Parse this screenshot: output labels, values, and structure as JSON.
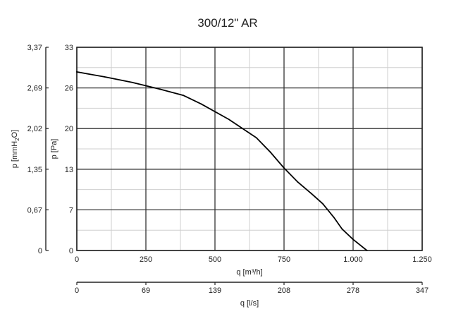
{
  "chart_data": {
    "type": "line",
    "title": "300/12\" AR",
    "xlabel": "q [m³/h]",
    "x_secondary_label": "q [l/s]",
    "ylabel": "p [Pa]",
    "y_secondary_label_parts": [
      "p [mmH",
      "2",
      "O]"
    ],
    "xlim": [
      0,
      1250
    ],
    "ylim": [
      0,
      33
    ],
    "x_ticks": [
      0,
      250,
      500,
      750,
      1000,
      1250
    ],
    "x_tick_labels": [
      "0",
      "250",
      "500",
      "750",
      "1.000",
      "1.250"
    ],
    "x_secondary_tick_labels": [
      "0",
      "69",
      "139",
      "208",
      "278",
      "347"
    ],
    "y_ticks": [
      0,
      6.6,
      13.2,
      19.8,
      26.4,
      33
    ],
    "y_tick_labels": [
      "0",
      "7",
      "13",
      "20",
      "26",
      "33"
    ],
    "y_secondary_tick_labels": [
      "0",
      "0,67",
      "1,35",
      "2,02",
      "2,69",
      "3,37"
    ],
    "grid": true,
    "series": [
      {
        "color": "#000000",
        "x": [
          0,
          100,
          200,
          300,
          385,
          450,
          550,
          650,
          700,
          750,
          800,
          850,
          890,
          930,
          960,
          1000,
          1050
        ],
        "y": [
          29.0,
          28.2,
          27.3,
          26.2,
          25.2,
          23.8,
          21.3,
          18.3,
          16.0,
          13.4,
          11.1,
          9.2,
          7.6,
          5.4,
          3.5,
          1.8,
          0
        ]
      }
    ]
  }
}
